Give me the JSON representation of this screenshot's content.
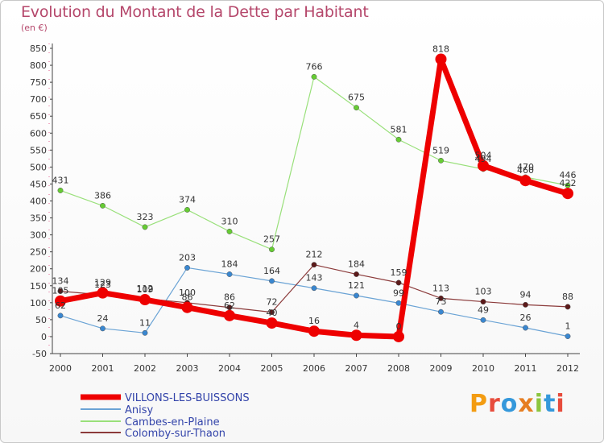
{
  "header": {
    "title": "Evolution du Montant de la Dette par Habitant",
    "subtitle": "(en €)"
  },
  "logo": {
    "text": "Proxiti",
    "letters": [
      "P",
      "r",
      "o",
      "x",
      "i",
      "t",
      "i"
    ],
    "colors": [
      "#f39c12",
      "#e74c3c",
      "#3498db",
      "#e67e22",
      "#8cc63f",
      "#3498db",
      "#e74c3c"
    ]
  },
  "chart_data": {
    "type": "line",
    "title": "Evolution du Montant de la Dette par Habitant",
    "subtitle": "(en €)",
    "x": [
      "2000",
      "2001",
      "2002",
      "2003",
      "2004",
      "2005",
      "2006",
      "2007",
      "2008",
      "2009",
      "2010",
      "2011",
      "2012"
    ],
    "ylim": [
      -50,
      850
    ],
    "yticks": [
      -50,
      0,
      50,
      100,
      150,
      200,
      250,
      300,
      350,
      400,
      450,
      500,
      550,
      600,
      650,
      700,
      750,
      800,
      850
    ],
    "grid": false,
    "legend_position": "bottom-left",
    "series": [
      {
        "name": "VILLONS-LES-BUISSONS",
        "color": "#ee0000",
        "width": 7,
        "marker": 7,
        "values": [
          105,
          129,
          109,
          86,
          62,
          40,
          16,
          4,
          0,
          818,
          504,
          460,
          422
        ],
        "labels": [
          "105",
          "129",
          "109",
          "86",
          "62",
          "40",
          "16",
          "4",
          "0",
          "818",
          "504",
          "460",
          "422"
        ]
      },
      {
        "name": "Anisy",
        "color": "#6aa3d5",
        "width": 1.2,
        "marker": 3.2,
        "markerColor": "#3a87d0",
        "values": [
          62,
          24,
          11,
          203,
          184,
          164,
          143,
          121,
          99,
          73,
          49,
          26,
          1
        ],
        "labels": [
          "62",
          "24",
          "11",
          "203",
          "184",
          "164",
          "143",
          "121",
          "99",
          "73",
          "49",
          "26",
          "1"
        ]
      },
      {
        "name": "Cambes-en-Plaine",
        "color": "#99e07a",
        "width": 1.2,
        "marker": 3.2,
        "markerColor": "#66cc33",
        "values": [
          431,
          386,
          323,
          374,
          310,
          257,
          766,
          675,
          581,
          519,
          494,
          470,
          446
        ],
        "labels": [
          "431",
          "386",
          "323",
          "374",
          "310",
          "257",
          "766",
          "675",
          "581",
          "519",
          "494",
          "470",
          "446"
        ]
      },
      {
        "name": "Colomby-sur-Thaon",
        "color": "#8b3a3a",
        "width": 1.2,
        "marker": 3.2,
        "markerColor": "#5c1a1a",
        "values": [
          134,
          123,
          112,
          100,
          86,
          72,
          212,
          184,
          159,
          113,
          103,
          94,
          88
        ],
        "labels": [
          "134",
          "123",
          "112",
          "100",
          "86",
          "72",
          "212",
          "184",
          "159",
          "113",
          "103",
          "94",
          "88"
        ]
      }
    ]
  }
}
